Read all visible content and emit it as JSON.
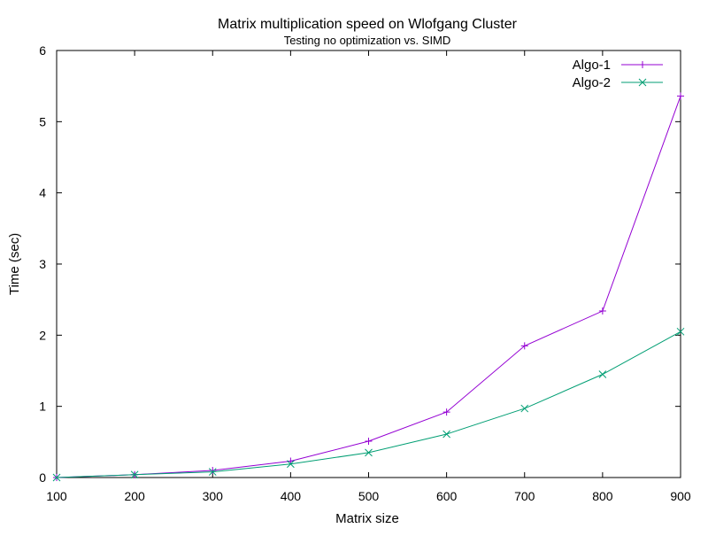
{
  "chart_data": {
    "type": "line",
    "title": "Matrix multiplication speed on Wlofgang Cluster",
    "subtitle": "Testing no optimization vs. SIMD",
    "xlabel": "Matrix size",
    "ylabel": "Time (sec)",
    "xlim": [
      100,
      900
    ],
    "ylim": [
      0,
      6
    ],
    "xticks": [
      100,
      200,
      300,
      400,
      500,
      600,
      700,
      800,
      900
    ],
    "yticks": [
      0,
      1,
      2,
      3,
      4,
      5,
      6
    ],
    "grid": false,
    "legend_position": "top-right",
    "series": [
      {
        "name": "Algo-1",
        "color": "#9400d3",
        "marker": "plus",
        "x": [
          100,
          200,
          300,
          400,
          500,
          600,
          700,
          800,
          900
        ],
        "y": [
          0.0,
          0.04,
          0.1,
          0.23,
          0.51,
          0.92,
          1.85,
          2.34,
          5.36
        ]
      },
      {
        "name": "Algo-2",
        "color": "#009e73",
        "marker": "cross",
        "x": [
          100,
          200,
          300,
          400,
          500,
          600,
          700,
          800,
          900
        ],
        "y": [
          0.0,
          0.04,
          0.08,
          0.19,
          0.35,
          0.61,
          0.97,
          1.45,
          2.05
        ]
      }
    ]
  }
}
